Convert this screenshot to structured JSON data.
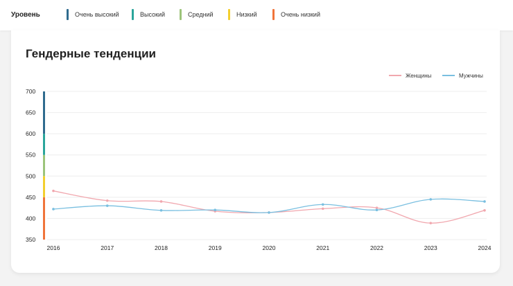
{
  "levels": {
    "title": "Уровень",
    "items": [
      {
        "label": "Очень высокий",
        "color": "#2f6b8e"
      },
      {
        "label": "Высокий",
        "color": "#2aa59b"
      },
      {
        "label": "Средний",
        "color": "#9cc47a"
      },
      {
        "label": "Низкий",
        "color": "#f3cf2e"
      },
      {
        "label": "Очень низкий",
        "color": "#f0743a"
      }
    ]
  },
  "chart_data": {
    "type": "line",
    "title": "Гендерные тенденции",
    "x": [
      "2016",
      "2017",
      "2018",
      "2019",
      "2020",
      "2021",
      "2022",
      "2023",
      "2024"
    ],
    "ylim": [
      350,
      700
    ],
    "yticks": [
      350,
      400,
      450,
      500,
      550,
      600,
      650,
      700
    ],
    "grid": true,
    "legend_position": "top-right",
    "series": [
      {
        "name": "Женщины",
        "color": "#f1a7ae",
        "values": [
          465,
          442,
          440,
          417,
          414,
          423,
          425,
          389,
          419
        ]
      },
      {
        "name": "Мужчины",
        "color": "#79bfe0",
        "values": [
          422,
          430,
          419,
          420,
          414,
          433,
          420,
          445,
          440
        ]
      }
    ],
    "level_bands": [
      {
        "from": 350,
        "to": 450,
        "color": "#f0743a"
      },
      {
        "from": 450,
        "to": 500,
        "color": "#f3cf2e"
      },
      {
        "from": 500,
        "to": 550,
        "color": "#9cc47a"
      },
      {
        "from": 550,
        "to": 600,
        "color": "#2aa59b"
      },
      {
        "from": 600,
        "to": 700,
        "color": "#2f6b8e"
      }
    ]
  }
}
